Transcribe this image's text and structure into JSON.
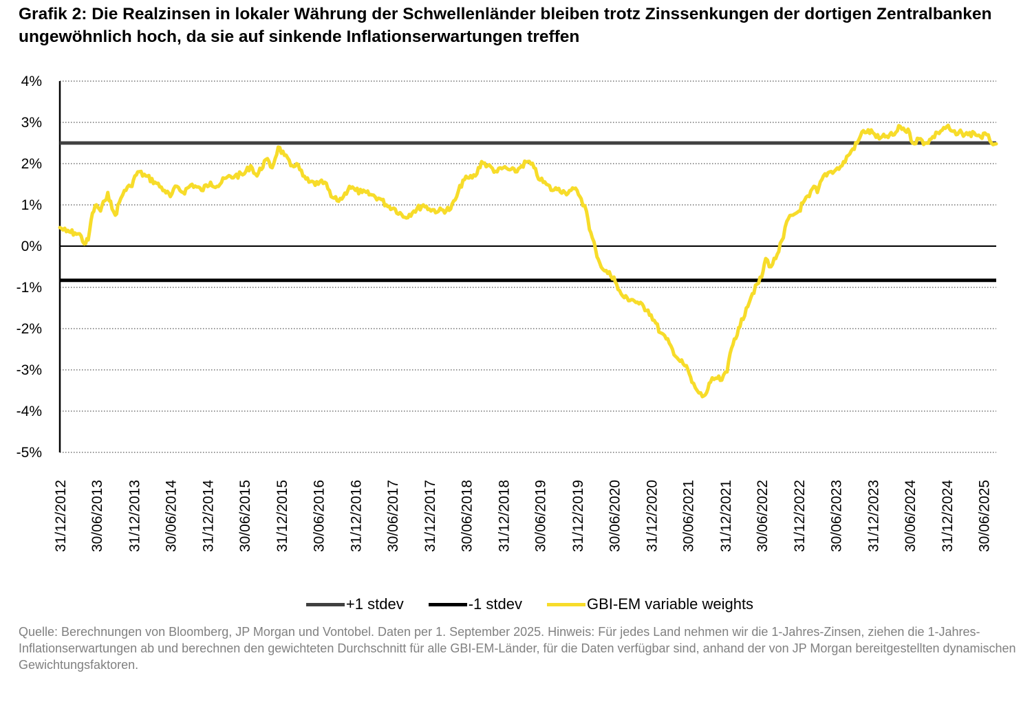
{
  "title": "Grafik 2: Die Realzinsen in lokaler Währung der Schwellenländer bleiben trotz Zinssenkungen der dortigen Zentralbanken ungewöhnlich hoch, da sie auf sinkende Inflationserwartungen treffen",
  "source": "Quelle: Berechnungen von Bloomberg, JP Morgan und Vontobel. Daten per 1. September 2025. Hinweis: Für jedes Land nehmen wir die 1-Jahres-Zinsen, ziehen die 1-Jahres-Inflationserwartungen ab und berechnen den gewichteten Durchschnitt für alle GBI-EM-Länder, für die Daten verfügbar sind, anhand der von JP Morgan bereitgestellten dynamischen Gewichtungsfaktoren.",
  "legend": [
    {
      "label": "+1 stdev",
      "color": "#404040"
    },
    {
      "label": "-1 stdev",
      "color": "#000000"
    },
    {
      "label": "GBI-EM variable weights",
      "color": "#F7DC2A"
    }
  ],
  "chart_data": {
    "type": "line",
    "y_tick_labels": [
      "4%",
      "3%",
      "2%",
      "1%",
      "0%",
      "-1%",
      "-2%",
      "-3%",
      "-4%",
      "-5%"
    ],
    "ylim": [
      -5,
      4
    ],
    "y_unit": "%",
    "x_tick_labels": [
      "31/12/2012",
      "30/06/2013",
      "31/12/2013",
      "30/06/2014",
      "31/12/2014",
      "30/06/2015",
      "31/12/2015",
      "30/06/2016",
      "31/12/2016",
      "30/06/2017",
      "31/12/2017",
      "30/06/2018",
      "31/12/2018",
      "30/06/2019",
      "31/12/2019",
      "30/06/2020",
      "31/12/2020",
      "30/06/2021",
      "31/12/2021",
      "30/06/2022",
      "31/12/2022",
      "30/06/2023",
      "31/12/2023",
      "30/06/2024",
      "31/12/2024",
      "30/06/2025"
    ],
    "x_end": "2025-09-01",
    "grid": "horizontal dotted",
    "legend_position": "bottom",
    "reference_lines": [
      {
        "name": "+1 stdev",
        "value": 2.5,
        "color": "#404040"
      },
      {
        "name": "-1 stdev",
        "value": -0.83,
        "color": "#000000"
      }
    ],
    "series": [
      {
        "name": "GBI-EM variable weights",
        "color": "#F7DC2A",
        "points": [
          [
            "2012-12-31",
            0.45
          ],
          [
            "2013-02-01",
            0.35
          ],
          [
            "2013-03-15",
            0.32
          ],
          [
            "2013-04-15",
            0.25
          ],
          [
            "2013-05-01",
            0.05
          ],
          [
            "2013-05-20",
            0.15
          ],
          [
            "2013-06-10",
            0.8
          ],
          [
            "2013-06-30",
            1.0
          ],
          [
            "2013-07-20",
            0.85
          ],
          [
            "2013-08-10",
            1.1
          ],
          [
            "2013-08-25",
            1.3
          ],
          [
            "2013-09-15",
            0.9
          ],
          [
            "2013-10-01",
            0.75
          ],
          [
            "2013-10-20",
            1.05
          ],
          [
            "2013-11-15",
            1.35
          ],
          [
            "2013-12-15",
            1.45
          ],
          [
            "2014-01-20",
            1.8
          ],
          [
            "2014-03-01",
            1.7
          ],
          [
            "2014-04-15",
            1.55
          ],
          [
            "2014-06-01",
            1.35
          ],
          [
            "2014-06-30",
            1.2
          ],
          [
            "2014-08-01",
            1.45
          ],
          [
            "2014-09-01",
            1.3
          ],
          [
            "2014-10-15",
            1.5
          ],
          [
            "2014-12-01",
            1.35
          ],
          [
            "2015-01-15",
            1.55
          ],
          [
            "2015-02-15",
            1.45
          ],
          [
            "2015-04-01",
            1.65
          ],
          [
            "2015-05-15",
            1.7
          ],
          [
            "2015-06-30",
            1.75
          ],
          [
            "2015-08-01",
            1.95
          ],
          [
            "2015-09-01",
            1.7
          ],
          [
            "2015-10-15",
            2.1
          ],
          [
            "2015-11-15",
            1.9
          ],
          [
            "2015-12-15",
            2.4
          ],
          [
            "2016-01-15",
            2.2
          ],
          [
            "2016-02-15",
            1.95
          ],
          [
            "2016-03-15",
            2.0
          ],
          [
            "2016-04-15",
            1.7
          ],
          [
            "2016-05-15",
            1.55
          ],
          [
            "2016-06-30",
            1.5
          ],
          [
            "2016-08-01",
            1.55
          ],
          [
            "2016-09-01",
            1.2
          ],
          [
            "2016-10-01",
            1.1
          ],
          [
            "2016-11-01",
            1.2
          ],
          [
            "2016-12-01",
            1.45
          ],
          [
            "2016-12-31",
            1.35
          ],
          [
            "2017-02-01",
            1.3
          ],
          [
            "2017-03-15",
            1.25
          ],
          [
            "2017-05-01",
            1.15
          ],
          [
            "2017-06-01",
            1.0
          ],
          [
            "2017-07-15",
            0.9
          ],
          [
            "2017-09-01",
            0.7
          ],
          [
            "2017-10-15",
            0.85
          ],
          [
            "2017-12-01",
            1.0
          ],
          [
            "2017-12-31",
            0.9
          ],
          [
            "2018-02-15",
            0.85
          ],
          [
            "2018-04-15",
            0.9
          ],
          [
            "2018-05-15",
            1.2
          ],
          [
            "2018-06-15",
            1.6
          ],
          [
            "2018-07-15",
            1.65
          ],
          [
            "2018-08-15",
            1.7
          ],
          [
            "2018-09-15",
            2.05
          ],
          [
            "2018-10-15",
            1.95
          ],
          [
            "2018-12-01",
            1.8
          ],
          [
            "2018-12-31",
            1.9
          ],
          [
            "2019-02-01",
            1.85
          ],
          [
            "2019-03-01",
            1.8
          ],
          [
            "2019-04-01",
            1.95
          ],
          [
            "2019-05-01",
            2.05
          ],
          [
            "2019-06-01",
            1.9
          ],
          [
            "2019-07-01",
            1.6
          ],
          [
            "2019-08-01",
            1.5
          ],
          [
            "2019-09-01",
            1.35
          ],
          [
            "2019-10-01",
            1.4
          ],
          [
            "2019-11-01",
            1.3
          ],
          [
            "2019-12-01",
            1.35
          ],
          [
            "2019-12-31",
            1.35
          ],
          [
            "2020-01-20",
            1.15
          ],
          [
            "2020-02-15",
            0.85
          ],
          [
            "2020-03-01",
            0.4
          ],
          [
            "2020-03-15",
            0.2
          ],
          [
            "2020-04-01",
            -0.1
          ],
          [
            "2020-04-20",
            -0.4
          ],
          [
            "2020-05-15",
            -0.6
          ],
          [
            "2020-06-30",
            -0.75
          ],
          [
            "2020-07-20",
            -1.05
          ],
          [
            "2020-08-20",
            -1.25
          ],
          [
            "2020-10-01",
            -1.3
          ],
          [
            "2020-11-01",
            -1.4
          ],
          [
            "2020-12-15",
            -1.55
          ],
          [
            "2021-01-15",
            -1.8
          ],
          [
            "2021-02-15",
            -2.1
          ],
          [
            "2021-03-15",
            -2.25
          ],
          [
            "2021-04-15",
            -2.5
          ],
          [
            "2021-05-15",
            -2.75
          ],
          [
            "2021-06-15",
            -2.9
          ],
          [
            "2021-07-01",
            -3.0
          ],
          [
            "2021-07-20",
            -3.3
          ],
          [
            "2021-08-15",
            -3.5
          ],
          [
            "2021-09-10",
            -3.65
          ],
          [
            "2021-10-01",
            -3.55
          ],
          [
            "2021-10-20",
            -3.3
          ],
          [
            "2021-11-15",
            -3.2
          ],
          [
            "2021-12-15",
            -3.25
          ],
          [
            "2022-01-10",
            -3.05
          ],
          [
            "2022-01-25",
            -2.6
          ],
          [
            "2022-02-15",
            -2.25
          ],
          [
            "2022-03-15",
            -1.95
          ],
          [
            "2022-04-15",
            -1.5
          ],
          [
            "2022-05-15",
            -1.15
          ],
          [
            "2022-06-30",
            -0.75
          ],
          [
            "2022-07-20",
            -0.3
          ],
          [
            "2022-08-15",
            -0.5
          ],
          [
            "2022-09-15",
            -0.2
          ],
          [
            "2022-10-15",
            0.2
          ],
          [
            "2022-11-01",
            0.6
          ],
          [
            "2022-12-01",
            0.75
          ],
          [
            "2022-12-31",
            0.85
          ],
          [
            "2023-01-20",
            1.05
          ],
          [
            "2023-02-20",
            1.2
          ],
          [
            "2023-03-15",
            1.45
          ],
          [
            "2023-04-01",
            1.3
          ],
          [
            "2023-05-01",
            1.7
          ],
          [
            "2023-06-01",
            1.8
          ],
          [
            "2023-07-01",
            1.85
          ],
          [
            "2023-08-01",
            1.95
          ],
          [
            "2023-09-01",
            2.2
          ],
          [
            "2023-10-15",
            2.5
          ],
          [
            "2023-11-15",
            2.8
          ],
          [
            "2023-12-31",
            2.75
          ],
          [
            "2024-02-01",
            2.6
          ],
          [
            "2024-03-01",
            2.65
          ],
          [
            "2024-04-15",
            2.7
          ],
          [
            "2024-05-15",
            2.9
          ],
          [
            "2024-06-30",
            2.75
          ],
          [
            "2024-07-15",
            2.5
          ],
          [
            "2024-08-15",
            2.6
          ],
          [
            "2024-09-15",
            2.5
          ],
          [
            "2024-10-15",
            2.6
          ],
          [
            "2024-11-15",
            2.75
          ],
          [
            "2024-12-31",
            2.9
          ],
          [
            "2025-01-20",
            2.8
          ],
          [
            "2025-02-15",
            2.7
          ],
          [
            "2025-03-15",
            2.75
          ],
          [
            "2025-04-15",
            2.7
          ],
          [
            "2025-05-15",
            2.75
          ],
          [
            "2025-06-15",
            2.65
          ],
          [
            "2025-07-15",
            2.7
          ],
          [
            "2025-08-01",
            2.55
          ],
          [
            "2025-09-01",
            2.48
          ]
        ]
      }
    ]
  }
}
